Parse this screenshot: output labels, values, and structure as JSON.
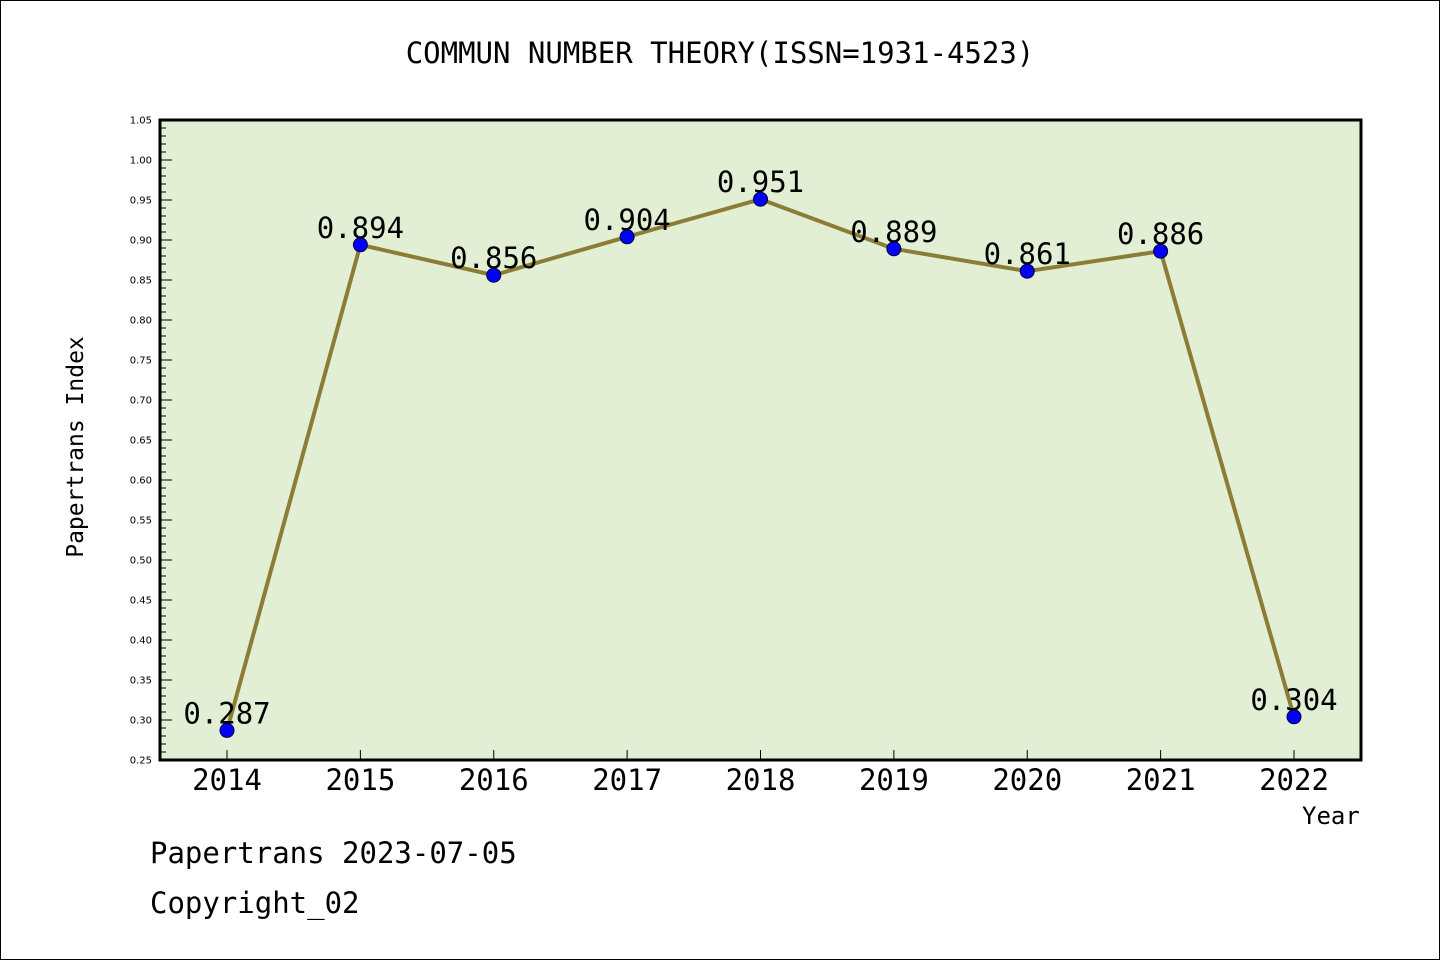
{
  "chart_data": {
    "type": "line",
    "title": "COMMUN NUMBER THEORY(ISSN=1931-4523)",
    "xlabel": "Year",
    "ylabel": "Papertrans Index",
    "categories": [
      "2014",
      "2015",
      "2016",
      "2017",
      "2018",
      "2019",
      "2020",
      "2021",
      "2022"
    ],
    "series": [
      {
        "values": [
          0.287,
          0.894,
          0.856,
          0.904,
          0.951,
          0.889,
          0.861,
          0.886,
          0.304
        ]
      }
    ],
    "data_labels": [
      "0.287",
      "0.894",
      "0.856",
      "0.904",
      "0.951",
      "0.889",
      "0.861",
      "0.886",
      "0.304"
    ],
    "ylim": [
      0.25,
      1.05
    ],
    "yticks": [
      "0.25",
      "0.30",
      "0.35",
      "0.40",
      "0.45",
      "0.50",
      "0.55",
      "0.60",
      "0.65",
      "0.70",
      "0.75",
      "0.80",
      "0.85",
      "0.90",
      "0.95",
      "1.00",
      "1.05"
    ],
    "grid": false,
    "colors": {
      "plot_background": "#e2efd4",
      "line": "#8c7d36",
      "marker": "#0000ff"
    }
  },
  "footer": {
    "line1": "Papertrans 2023-07-05",
    "line2": "Copyright_02"
  }
}
